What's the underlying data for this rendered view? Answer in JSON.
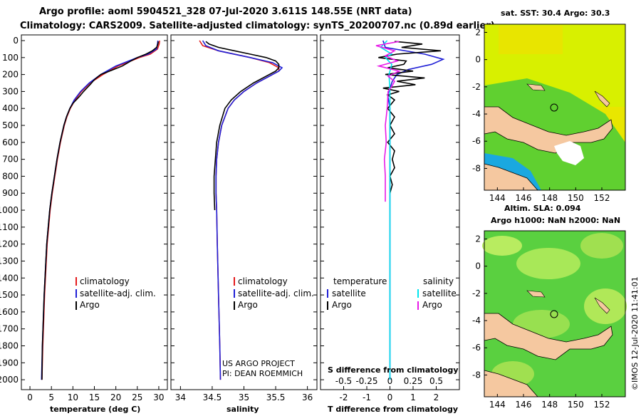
{
  "header": {
    "line1": "Argo profile: aoml 5904521_328 07-Jul-2020 3.611S 148.55E (NRT data)",
    "line2": "Climatology: CARS2009. Satellite-adjusted climatology: synTS_20200707.nc (0.89d earlier)"
  },
  "depth_ticks": [
    "0",
    "100",
    "200",
    "300",
    "400",
    "500",
    "600",
    "700",
    "800",
    "900",
    "1000",
    "1100",
    "1200",
    "1300",
    "1400",
    "1500",
    "1600",
    "1700",
    "1800",
    "1900",
    "2000"
  ],
  "colors": {
    "climatology": "#e41a1c",
    "satellite": "#1f1fd6",
    "argo": "#000000",
    "salinity_sat": "#00e5ee",
    "salinity_argo": "#e81ae8",
    "land": "#f5c8a0"
  },
  "chart_data": [
    {
      "type": "line",
      "title": "",
      "xlabel": "temperature (deg C)",
      "ylabel": "depth",
      "xlim": [
        -2,
        32
      ],
      "ylim": [
        2050,
        0
      ],
      "xticks": [
        "0",
        "5",
        "10",
        "15",
        "20",
        "25",
        "30"
      ],
      "legend": [
        "climatology",
        "satellite-adj. clim.",
        "Argo"
      ],
      "series": [
        {
          "name": "climatology",
          "depth": [
            0,
            20,
            50,
            80,
            100,
            120,
            150,
            200,
            250,
            300,
            350,
            400,
            450,
            500,
            600,
            700,
            800,
            900,
            1000,
            1200,
            1500,
            1800,
            2000
          ],
          "values": [
            30.2,
            30.1,
            29.7,
            28,
            25.5,
            23.5,
            20.5,
            17,
            14,
            12,
            10.5,
            9.4,
            8.6,
            8,
            7.1,
            6.4,
            5.8,
            5.2,
            4.7,
            4,
            3.4,
            3,
            2.8
          ]
        },
        {
          "name": "satellite-adj. clim.",
          "depth": [
            0,
            20,
            50,
            80,
            100,
            120,
            150,
            200,
            250,
            300,
            350,
            400,
            450,
            500,
            600,
            700,
            800,
            900,
            1000,
            1200,
            1500,
            1800,
            2000
          ],
          "values": [
            29.8,
            29.7,
            29.5,
            27.5,
            25,
            23,
            20,
            16.5,
            13.8,
            11.8,
            10.3,
            9.3,
            8.5,
            7.9,
            7,
            6.3,
            5.7,
            5.1,
            4.6,
            3.9,
            3.3,
            2.9,
            2.7
          ]
        },
        {
          "name": "Argo",
          "depth": [
            5,
            20,
            40,
            60,
            80,
            100,
            120,
            150,
            175,
            200,
            230,
            260,
            300,
            330,
            370,
            400,
            450,
            500,
            600,
            700,
            800,
            900,
            1000,
            1200,
            1500,
            1800,
            2000
          ],
          "values": [
            29.9,
            29.8,
            29.5,
            28.5,
            27,
            25,
            23.5,
            21.5,
            19,
            16.5,
            15,
            14,
            12.5,
            11.5,
            10,
            9.3,
            8.5,
            7.9,
            7,
            6.3,
            5.7,
            5.1,
            4.6,
            3.9,
            3.3,
            2.9,
            2.8
          ]
        }
      ]
    },
    {
      "type": "line",
      "xlabel": "salinity",
      "xlim": [
        33.85,
        36.15
      ],
      "ylim": [
        2050,
        0
      ],
      "xticks": [
        "34",
        "34.5",
        "35",
        "35.5",
        "36"
      ],
      "legend": [
        "climatology",
        "satellite-adj. clim.",
        "Argo"
      ],
      "annotation": [
        "US ARGO PROJECT",
        "PI: DEAN ROEMMICH"
      ],
      "series": [
        {
          "name": "climatology",
          "depth": [
            0,
            30,
            60,
            100,
            130,
            160,
            180,
            200,
            250,
            300,
            350,
            400,
            500,
            600,
            700,
            800,
            900,
            1000,
            1200,
            1500,
            1800,
            2000
          ],
          "values": [
            34.3,
            34.35,
            34.6,
            35.1,
            35.4,
            35.55,
            35.55,
            35.45,
            35.2,
            35,
            34.85,
            34.75,
            34.65,
            34.6,
            34.57,
            34.56,
            34.56,
            34.57,
            34.58,
            34.6,
            34.62,
            34.63
          ]
        },
        {
          "name": "satellite-adj. clim.",
          "depth": [
            0,
            30,
            60,
            100,
            130,
            160,
            180,
            200,
            250,
            300,
            350,
            400,
            500,
            600,
            700,
            800,
            900,
            1000,
            1200,
            1500,
            1800,
            2000
          ],
          "values": [
            34.35,
            34.4,
            34.6,
            35.1,
            35.45,
            35.6,
            35.55,
            35.45,
            35.2,
            35,
            34.85,
            34.75,
            34.65,
            34.6,
            34.57,
            34.56,
            34.56,
            34.57,
            34.58,
            34.6,
            34.62,
            34.63
          ]
        },
        {
          "name": "Argo",
          "depth": [
            5,
            20,
            40,
            60,
            80,
            100,
            120,
            140,
            160,
            180,
            200,
            250,
            300,
            350,
            400,
            500,
            600,
            700,
            800,
            900,
            1000
          ],
          "values": [
            34.4,
            34.45,
            34.6,
            34.85,
            35.1,
            35.35,
            35.5,
            35.55,
            35.55,
            35.5,
            35.4,
            35.15,
            34.95,
            34.8,
            34.7,
            34.62,
            34.57,
            34.55,
            34.53,
            34.53,
            34.54
          ]
        }
      ]
    },
    {
      "type": "line",
      "xlabel": "T difference from climatology",
      "x2label": "S difference from climatology",
      "xlim": [
        -3,
        3
      ],
      "ylim": [
        2050,
        0
      ],
      "xticks": [
        "-2",
        "-1",
        "0",
        "1",
        "2"
      ],
      "x2ticks": [
        "-0.5",
        "-0.25",
        "0",
        "0.25",
        "0.5"
      ],
      "legend_left": {
        "title": "temperature",
        "items": [
          "satellite",
          "Argo"
        ]
      },
      "legend_right": {
        "title": "salinity",
        "items": [
          "satellite",
          "Argo"
        ]
      },
      "series": [
        {
          "name": "temperature satellite",
          "depth": [
            0,
            40,
            80,
            110,
            140,
            170,
            200,
            240,
            280,
            320,
            400,
            600,
            1000,
            1500,
            2000
          ],
          "values": [
            -0.3,
            -0.2,
            1.5,
            2.3,
            1.8,
            0.8,
            0.3,
            0.1,
            0,
            -0.1,
            0,
            0,
            0,
            0,
            0
          ]
        },
        {
          "name": "temperature Argo",
          "depth": [
            5,
            20,
            40,
            60,
            80,
            100,
            120,
            140,
            160,
            180,
            200,
            220,
            240,
            260,
            280,
            300,
            320,
            350,
            400,
            450,
            500,
            550,
            600,
            650,
            700,
            750,
            800,
            850,
            900
          ],
          "values": [
            0.2,
            1.4,
            0.5,
            2.2,
            0.3,
            -0.5,
            0.7,
            0.6,
            -0.1,
            1,
            -0.2,
            1.5,
            0.3,
            1.1,
            -0.3,
            0.4,
            -0.1,
            0.2,
            -0.1,
            0.2,
            0,
            0.2,
            -0.1,
            0.2,
            0.1,
            0.2,
            0,
            0.1,
            0
          ]
        },
        {
          "name": "salinity satellite",
          "depth": [
            0,
            40,
            80,
            100,
            140,
            200,
            300,
            500,
            1000,
            1500,
            2000
          ],
          "values": [
            -0.03,
            -0.1,
            0.02,
            -0.05,
            0.02,
            -0.01,
            0,
            0,
            0,
            0,
            0
          ]
        },
        {
          "name": "salinity Argo",
          "depth": [
            5,
            30,
            60,
            90,
            120,
            150,
            180,
            210,
            240,
            270,
            300,
            400,
            500,
            600,
            700,
            800,
            900,
            950
          ],
          "values": [
            0.1,
            -0.15,
            0.05,
            -0.05,
            0.08,
            -0.12,
            0.1,
            -0.02,
            0.05,
            0.02,
            -0.02,
            -0.03,
            -0.05,
            -0.04,
            -0.06,
            -0.05,
            -0.05,
            -0.05
          ]
        }
      ]
    }
  ],
  "maps": [
    {
      "title": "sat. SST: 30.4 Argo: 30.3",
      "xticks": [
        "144",
        "146",
        "148",
        "150",
        "152"
      ],
      "yticks": [
        "2",
        "0",
        "-2",
        "-4",
        "-6",
        "-8"
      ]
    },
    {
      "title_line1": "Altim. SLA: 0.094",
      "title_line2": "Argo h1000: NaN h2000: NaN",
      "xticks": [
        "144",
        "146",
        "148",
        "150",
        "152"
      ],
      "yticks": [
        "2",
        "0",
        "-2",
        "-4",
        "-6",
        "-8"
      ]
    }
  ],
  "credit": "©IMOS 12-Jul-2020 11:41:01"
}
